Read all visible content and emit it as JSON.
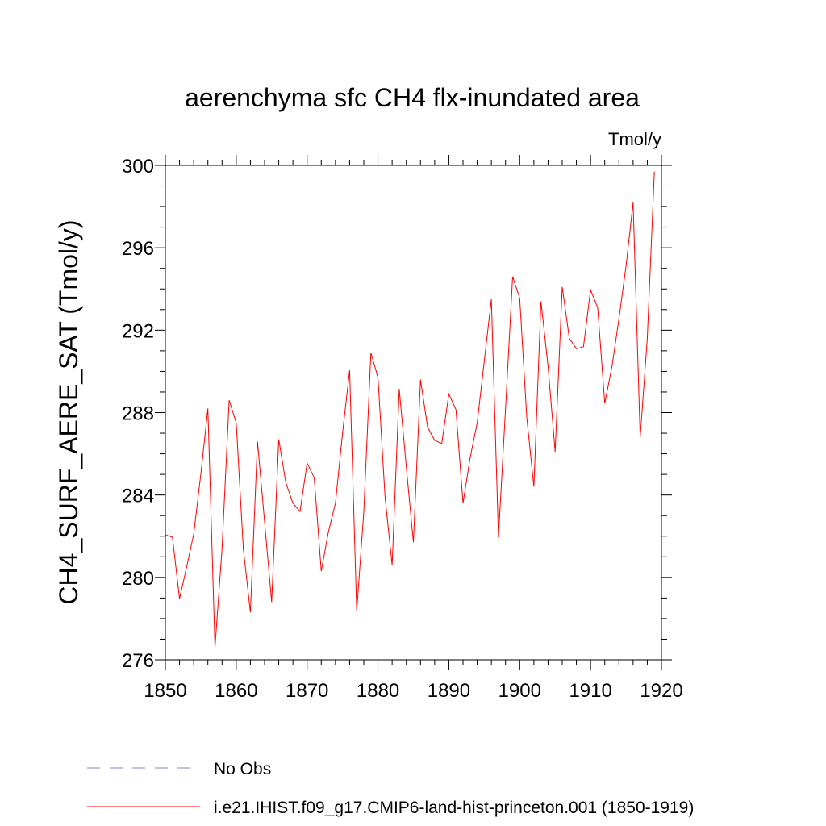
{
  "chart_data": {
    "type": "line",
    "title": "aerenchyma sfc CH4 flx-inundated area",
    "units": "Tmol/y",
    "y_label": "CH4_SURF_AERE_SAT  (Tmol/y)",
    "x": [
      1850,
      1851,
      1852,
      1853,
      1854,
      1855,
      1856,
      1857,
      1858,
      1859,
      1860,
      1861,
      1862,
      1863,
      1864,
      1865,
      1866,
      1867,
      1868,
      1869,
      1870,
      1871,
      1872,
      1873,
      1874,
      1875,
      1876,
      1877,
      1878,
      1879,
      1880,
      1881,
      1882,
      1883,
      1884,
      1885,
      1886,
      1887,
      1888,
      1889,
      1890,
      1891,
      1892,
      1893,
      1894,
      1895,
      1896,
      1897,
      1898,
      1899,
      1900,
      1901,
      1902,
      1903,
      1904,
      1905,
      1906,
      1907,
      1908,
      1909,
      1910,
      1911,
      1912,
      1913,
      1914,
      1915,
      1916,
      1917,
      1918,
      1919
    ],
    "series": [
      {
        "name": "No Obs",
        "color": "#8a7fc0",
        "dashed": true,
        "values": [
          null,
          null,
          null,
          null,
          null,
          null,
          null,
          null,
          null,
          null,
          null,
          null,
          null,
          null,
          null,
          null,
          null,
          null,
          null,
          null,
          null,
          null,
          null,
          null,
          null,
          null,
          null,
          null,
          null,
          null,
          null,
          null,
          null,
          null,
          null,
          null,
          null,
          null,
          null,
          null,
          null,
          null,
          null,
          null,
          null,
          null,
          null,
          null,
          null,
          null,
          null,
          null,
          null,
          null,
          null,
          null,
          null,
          null,
          null,
          null,
          null,
          null,
          null,
          null,
          null,
          null,
          null,
          null,
          null,
          null
        ]
      },
      {
        "name": "i.e21.IHIST.f09_g17.CMIP6-land-hist-princeton.001 (1850-1919)",
        "color": "#ff0000",
        "dashed": false,
        "values": [
          282.07,
          281.95,
          278.97,
          280.5,
          282.1,
          285.0,
          288.2,
          276.6,
          281.4,
          288.6,
          287.5,
          281.4,
          278.3,
          286.6,
          282.7,
          278.8,
          286.7,
          284.6,
          283.6,
          283.2,
          285.55,
          284.85,
          280.3,
          282.2,
          283.6,
          287.0,
          290.05,
          278.35,
          283.2,
          290.9,
          289.7,
          283.9,
          280.6,
          289.15,
          285.35,
          281.7,
          289.6,
          287.3,
          286.65,
          286.5,
          288.9,
          288.15,
          283.6,
          285.8,
          287.5,
          290.5,
          293.5,
          281.95,
          288.2,
          294.6,
          293.55,
          287.75,
          284.4,
          293.4,
          290.25,
          286.1,
          294.1,
          291.6,
          291.1,
          291.2,
          293.95,
          293.1,
          288.45,
          290.2,
          292.55,
          295.1,
          298.2,
          286.8,
          291.6,
          299.7
        ]
      }
    ],
    "xlim": [
      1850,
      1920
    ],
    "xticks": [
      1850,
      1860,
      1870,
      1880,
      1890,
      1900,
      1910,
      1920
    ],
    "ylim": [
      276,
      300
    ],
    "yticks": [
      276,
      280,
      284,
      288,
      292,
      296,
      300
    ]
  }
}
